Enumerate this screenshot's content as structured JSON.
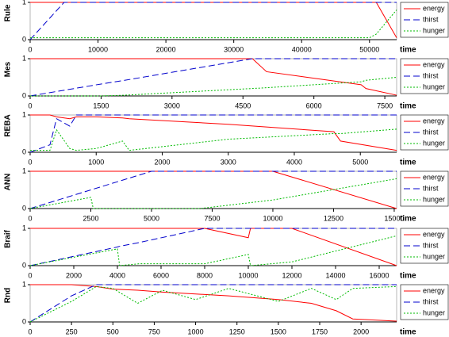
{
  "chart_data": [
    {
      "type": "line",
      "ylabel": "Rule",
      "xlabel": "time",
      "xlim": [
        0,
        54000
      ],
      "ylim": [
        0,
        1
      ],
      "yticks": [
        0,
        1
      ],
      "xticks": [
        0,
        10000,
        20000,
        30000,
        40000,
        50000
      ],
      "legend": "right",
      "x": [
        0,
        5000,
        10000,
        20000,
        30000,
        40000,
        50000,
        51000,
        54000
      ],
      "series": [
        {
          "name": "energy",
          "color": "#ff0000",
          "linestyle": "solid",
          "values": [
            1,
            1,
            1,
            1,
            1,
            1,
            1,
            1,
            0.05
          ]
        },
        {
          "name": "thirst",
          "color": "#0000cc",
          "linestyle": "dashed",
          "values": [
            0,
            1,
            1,
            1,
            1,
            1,
            1,
            1,
            1
          ]
        },
        {
          "name": "hunger",
          "color": "#00bb00",
          "linestyle": "dotted",
          "values": [
            0.05,
            0.05,
            0.05,
            0.05,
            0.05,
            0.05,
            0.05,
            0.15,
            0.8
          ]
        }
      ]
    },
    {
      "type": "line",
      "ylabel": "Mes",
      "xlabel": "time",
      "xlim": [
        0,
        7750
      ],
      "ylim": [
        0,
        1
      ],
      "yticks": [
        0,
        1
      ],
      "xticks": [
        0,
        1500,
        3000,
        4500,
        6000,
        7500
      ],
      "legend": "right",
      "x": [
        0,
        1500,
        2000,
        4700,
        5000,
        7000,
        7100,
        7750
      ],
      "series": [
        {
          "name": "energy",
          "color": "#ff0000",
          "linestyle": "solid",
          "values": [
            1,
            1,
            1,
            1,
            0.65,
            0.3,
            0.2,
            0.02
          ]
        },
        {
          "name": "thirst",
          "color": "#0000cc",
          "linestyle": "dashed",
          "values": [
            0,
            0.32,
            0.42,
            1,
            1,
            1,
            1,
            1
          ]
        },
        {
          "name": "hunger",
          "color": "#00bb00",
          "linestyle": "dotted",
          "values": [
            0,
            0,
            0.02,
            0.2,
            0.22,
            0.38,
            0.42,
            0.5
          ]
        }
      ]
    },
    {
      "type": "line",
      "ylabel": "REBA",
      "xlabel": "time",
      "xlim": [
        0,
        5550
      ],
      "ylim": [
        0,
        1
      ],
      "yticks": [
        0,
        1
      ],
      "xticks": [
        0,
        1000,
        2000,
        3000,
        4000,
        5000
      ],
      "legend": "right",
      "x": [
        0,
        300,
        400,
        600,
        700,
        1000,
        1400,
        1500,
        3000,
        4600,
        4700,
        5550
      ],
      "series": [
        {
          "name": "energy",
          "color": "#ff0000",
          "linestyle": "solid",
          "values": [
            1,
            1,
            0.95,
            0.9,
            0.95,
            0.95,
            0.92,
            0.9,
            0.75,
            0.55,
            0.3,
            0.05
          ]
        },
        {
          "name": "thirst",
          "color": "#0000cc",
          "linestyle": "dashed",
          "values": [
            0,
            0.2,
            0.9,
            0.7,
            1,
            1,
            1,
            1,
            1,
            1,
            1,
            1
          ]
        },
        {
          "name": "hunger",
          "color": "#00bb00",
          "linestyle": "dotted",
          "values": [
            0.05,
            0.05,
            0.6,
            0.1,
            0.05,
            0.1,
            0.3,
            0.05,
            0.35,
            0.5,
            0.5,
            0.62
          ]
        }
      ]
    },
    {
      "type": "line",
      "ylabel": "ANN",
      "xlabel": "time",
      "xlim": [
        0,
        15100
      ],
      "ylim": [
        0,
        1
      ],
      "yticks": [
        0,
        1
      ],
      "xticks": [
        0,
        2500,
        5000,
        7500,
        10000,
        12500,
        15000
      ],
      "legend": "right",
      "x": [
        0,
        2500,
        2600,
        5000,
        7000,
        10000,
        15100
      ],
      "series": [
        {
          "name": "energy",
          "color": "#ff0000",
          "linestyle": "solid",
          "values": [
            1,
            1,
            1,
            1,
            1,
            1,
            0
          ]
        },
        {
          "name": "thirst",
          "color": "#0000cc",
          "linestyle": "dashed",
          "values": [
            0,
            0.5,
            0.52,
            1,
            1,
            1,
            1
          ]
        },
        {
          "name": "hunger",
          "color": "#00bb00",
          "linestyle": "dotted",
          "values": [
            0,
            0.3,
            0,
            0,
            0,
            0.23,
            0.8
          ]
        }
      ]
    },
    {
      "type": "line",
      "ylabel": "Braif",
      "xlabel": "time",
      "xlim": [
        0,
        16800
      ],
      "ylim": [
        0,
        1
      ],
      "yticks": [
        0,
        1
      ],
      "xticks": [
        0,
        2000,
        4000,
        6000,
        8000,
        10000,
        12000,
        14000,
        16000
      ],
      "legend": "right",
      "x": [
        0,
        4000,
        4100,
        5000,
        8000,
        10000,
        10100,
        12000,
        16800
      ],
      "series": [
        {
          "name": "energy",
          "color": "#ff0000",
          "linestyle": "solid",
          "values": [
            1,
            1,
            1,
            1,
            1,
            0.75,
            1,
            1,
            0
          ]
        },
        {
          "name": "thirst",
          "color": "#0000cc",
          "linestyle": "dashed",
          "values": [
            0,
            0.5,
            0.52,
            0.62,
            1,
            1,
            1,
            1,
            1
          ]
        },
        {
          "name": "hunger",
          "color": "#00bb00",
          "linestyle": "dotted",
          "values": [
            0,
            0.45,
            0,
            0.05,
            0.05,
            0.3,
            0,
            0.1,
            0.8
          ]
        }
      ]
    },
    {
      "type": "line",
      "ylabel": "Rnd",
      "xlabel": "time",
      "xlim": [
        0,
        2215
      ],
      "ylim": [
        0,
        1
      ],
      "yticks": [
        0,
        1
      ],
      "xticks": [
        0,
        250,
        500,
        750,
        1000,
        1250,
        1500,
        1750,
        2000
      ],
      "legend": "right",
      "x": [
        0,
        250,
        400,
        500,
        650,
        800,
        1000,
        1200,
        1500,
        1700,
        1850,
        1950,
        2215
      ],
      "series": [
        {
          "name": "energy",
          "color": "#ff0000",
          "linestyle": "solid",
          "values": [
            1,
            1,
            0.95,
            0.88,
            0.85,
            0.8,
            0.75,
            0.7,
            0.6,
            0.5,
            0.3,
            0.08,
            0.02
          ]
        },
        {
          "name": "thirst",
          "color": "#0000cc",
          "linestyle": "dashed",
          "values": [
            0,
            0.7,
            1,
            1,
            1,
            1,
            1,
            1,
            1,
            1,
            1,
            1,
            1
          ]
        },
        {
          "name": "hunger",
          "color": "#00bb00",
          "linestyle": "dotted",
          "values": [
            0,
            0.55,
            0.95,
            0.9,
            0.5,
            0.85,
            0.6,
            0.9,
            0.55,
            0.9,
            0.6,
            0.9,
            0.95
          ]
        }
      ]
    }
  ]
}
